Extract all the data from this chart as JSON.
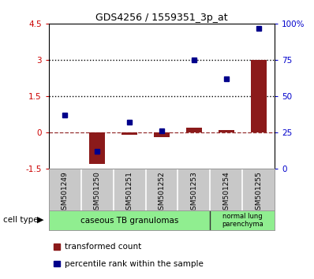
{
  "title": "GDS4256 / 1559351_3p_at",
  "samples": [
    "GSM501249",
    "GSM501250",
    "GSM501251",
    "GSM501252",
    "GSM501253",
    "GSM501254",
    "GSM501255"
  ],
  "transformed_count": [
    0.0,
    -1.3,
    -0.1,
    -0.2,
    0.2,
    0.1,
    3.0
  ],
  "percentile_rank_right": [
    37,
    12,
    32,
    26,
    75,
    62,
    97
  ],
  "ylim_left": [
    -1.5,
    4.5
  ],
  "ylim_right": [
    0,
    100
  ],
  "yticks_left": [
    -1.5,
    0,
    1.5,
    3,
    4.5
  ],
  "yticks_right": [
    0,
    25,
    50,
    75,
    100
  ],
  "ytick_labels_left": [
    "-1.5",
    "0",
    "1.5",
    "3",
    "4.5"
  ],
  "ytick_labels_right": [
    "0",
    "25",
    "50",
    "75",
    "100%"
  ],
  "hlines": [
    1.5,
    3.0
  ],
  "bar_color": "#8B1A1A",
  "dot_color": "#00008B",
  "group1_label": "caseous TB granulomas",
  "group2_label": "normal lung\nparenchyma",
  "group1_count": 5,
  "group2_count": 2,
  "cell_type_label": "cell type",
  "legend_bar_label": "transformed count",
  "legend_dot_label": "percentile rank within the sample",
  "bg_plot": "#FFFFFF",
  "tick_area_color": "#C8C8C8",
  "cell_type_bg": "#90EE90",
  "axis_color_left": "#CC0000",
  "axis_color_right": "#0000CC"
}
